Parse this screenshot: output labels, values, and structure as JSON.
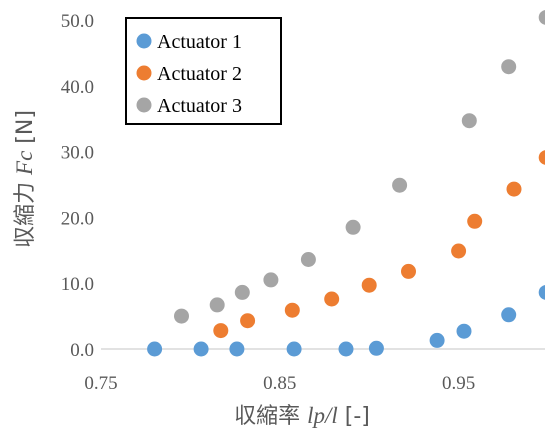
{
  "chart_data": {
    "type": "scatter",
    "xlabel": {
      "prefix": "収縮率 ",
      "symbol": "lp/l",
      "unit": " [-]"
    },
    "ylabel": {
      "prefix": "収縮力 ",
      "symbol": "Fc",
      "unit": " [N]"
    },
    "xlim": [
      0.75,
      1.0
    ],
    "ylim": [
      0,
      50
    ],
    "xticks": [
      {
        "value": 0.75,
        "label": "0.75"
      },
      {
        "value": 0.85,
        "label": "0.85"
      },
      {
        "value": 0.95,
        "label": "0.95"
      }
    ],
    "yticks": [
      {
        "value": 0,
        "label": "0.0"
      },
      {
        "value": 10,
        "label": "10.0"
      },
      {
        "value": 20,
        "label": "20.0"
      },
      {
        "value": 30,
        "label": "30.0"
      },
      {
        "value": 40,
        "label": "40.0"
      },
      {
        "value": 50,
        "label": "50.0"
      }
    ],
    "grid": false,
    "legend_position": "top-left",
    "series": [
      {
        "name": "Actuator 1",
        "color": "#5b9bd5",
        "points": [
          [
            0.78,
            0.0
          ],
          [
            0.806,
            0.0
          ],
          [
            0.826,
            0.0
          ],
          [
            0.858,
            0.0
          ],
          [
            0.887,
            0.0
          ],
          [
            0.904,
            0.1
          ],
          [
            0.938,
            1.3
          ],
          [
            0.953,
            2.7
          ],
          [
            0.978,
            5.2
          ],
          [
            0.999,
            8.6
          ]
        ]
      },
      {
        "name": "Actuator 2",
        "color": "#ed7d31",
        "points": [
          [
            0.817,
            2.8
          ],
          [
            0.832,
            4.3
          ],
          [
            0.857,
            5.9
          ],
          [
            0.879,
            7.6
          ],
          [
            0.9,
            9.7
          ],
          [
            0.922,
            11.8
          ],
          [
            0.95,
            14.9
          ],
          [
            0.959,
            19.4
          ],
          [
            0.981,
            24.3
          ],
          [
            0.999,
            29.1
          ]
        ]
      },
      {
        "name": "Actuator 3",
        "color": "#a5a5a5",
        "points": [
          [
            0.795,
            5.0
          ],
          [
            0.815,
            6.7
          ],
          [
            0.829,
            8.6
          ],
          [
            0.845,
            10.5
          ],
          [
            0.866,
            13.6
          ],
          [
            0.891,
            18.5
          ],
          [
            0.917,
            24.9
          ],
          [
            0.956,
            34.7
          ],
          [
            0.978,
            42.9
          ],
          [
            0.999,
            50.4
          ]
        ]
      }
    ]
  }
}
